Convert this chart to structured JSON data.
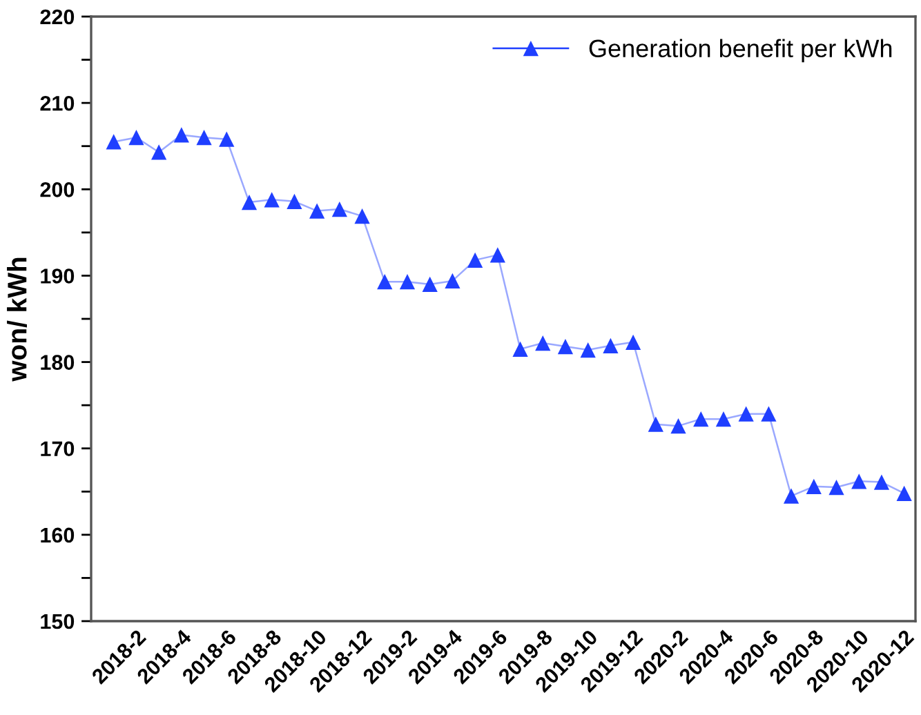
{
  "chart_data": {
    "type": "line",
    "ylabel": "won/ kWh",
    "categories": [
      null,
      "2018-2",
      null,
      "2018-4",
      null,
      "2018-6",
      null,
      "2018-8",
      null,
      "2018-10",
      null,
      "2018-12",
      null,
      "2019-2",
      null,
      "2019-4",
      null,
      "2019-6",
      null,
      "2019-8",
      null,
      "2019-10",
      null,
      "2019-12",
      null,
      "2020-2",
      null,
      "2020-4",
      null,
      "2020-6",
      null,
      "2020-8",
      null,
      "2020-10",
      null,
      "2020-12"
    ],
    "series": [
      {
        "name": "Generation benefit per kWh",
        "color": "#1f3fff",
        "values": [
          205.5,
          206,
          204.3,
          206.3,
          206,
          205.8,
          198.5,
          198.8,
          198.6,
          197.5,
          197.7,
          196.9,
          189.3,
          189.3,
          189,
          189.4,
          191.8,
          192.4,
          181.5,
          182.2,
          181.8,
          181.4,
          181.9,
          182.3,
          172.8,
          172.6,
          173.4,
          173.4,
          174,
          174,
          164.5,
          165.6,
          165.5,
          166.2,
          166.1,
          164.8
        ]
      }
    ],
    "ylim": [
      150,
      220
    ],
    "yticks": [
      150,
      {
        "value": 155,
        "label": null
      },
      160,
      {
        "value": 165,
        "label": null
      },
      170,
      {
        "value": 175,
        "label": null
      },
      180,
      {
        "value": 185,
        "label": null
      },
      190,
      {
        "value": 195,
        "label": null
      },
      200,
      {
        "value": 205,
        "label": null
      },
      210,
      {
        "value": 215,
        "label": null
      },
      220
    ],
    "marker": "triangle",
    "line_style": "solid",
    "legend": "top right",
    "grid": false
  }
}
